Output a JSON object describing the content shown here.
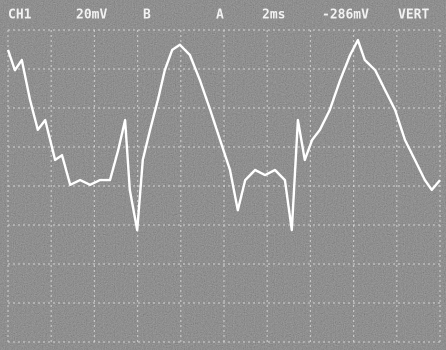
{
  "chart_data": {
    "type": "line",
    "annotations": [
      "CH1",
      "20mV",
      "B",
      "A",
      "2ms",
      "-286mV",
      "VERT"
    ],
    "x": [
      0,
      0.16,
      0.32,
      0.51,
      0.69,
      0.86,
      1.09,
      1.25,
      1.44,
      1.67,
      1.9,
      2.13,
      2.36,
      2.55,
      2.71,
      2.82,
      2.99,
      3.12,
      3.29,
      3.47,
      3.63,
      3.8,
      3.98,
      4.21,
      4.44,
      4.68,
      4.91,
      5.14,
      5.32,
      5.49,
      5.72,
      5.95,
      6.18,
      6.41,
      6.57,
      6.71,
      6.87,
      7.04,
      7.22,
      7.45,
      7.69,
      7.92,
      8.1,
      8.26,
      8.5,
      8.73,
      8.96,
      9.19,
      9.42,
      9.65,
      9.81,
      10
    ],
    "values": [
      3.49,
      2.97,
      3.23,
      2.21,
      1.44,
      1.69,
      0.67,
      0.79,
      0.03,
      0.15,
      0.03,
      0.15,
      0.15,
      0.92,
      1.69,
      -0.1,
      -1.13,
      0.67,
      1.44,
      2.21,
      2.97,
      3.49,
      3.62,
      3.36,
      2.72,
      1.95,
      1.18,
      0.41,
      -0.62,
      0.15,
      0.41,
      0.28,
      0.41,
      0.15,
      -1.13,
      1.69,
      0.67,
      1.18,
      1.44,
      1.95,
      2.72,
      3.36,
      3.74,
      3.23,
      2.97,
      2.46,
      1.95,
      1.18,
      0.67,
      0.15,
      -0.1,
      0.15
    ],
    "color": "#ffffff",
    "xlim": [
      0,
      10
    ],
    "ylim": [
      -4,
      4
    ],
    "xticks": [
      0,
      1,
      2,
      3,
      4,
      5,
      6,
      7,
      8,
      9,
      10
    ],
    "yticks": [
      -4,
      -3,
      -2,
      -1,
      0,
      1,
      2,
      3,
      4
    ],
    "grid": true
  }
}
